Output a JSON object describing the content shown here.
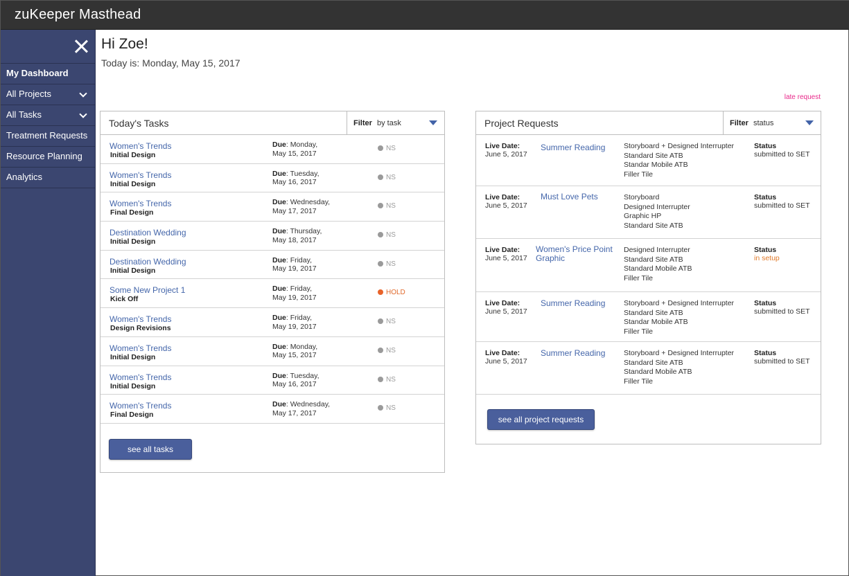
{
  "masthead": {
    "title": "zuKeeper Masthead"
  },
  "sidebar": {
    "close_icon": "close-icon",
    "items": [
      {
        "label": "My Dashboard",
        "active": true,
        "expandable": false
      },
      {
        "label": "All Projects",
        "active": false,
        "expandable": true
      },
      {
        "label": "All Tasks",
        "active": false,
        "expandable": true
      },
      {
        "label": "Treatment Requests",
        "active": false,
        "expandable": false
      },
      {
        "label": "Resource Planning",
        "active": false,
        "expandable": false
      },
      {
        "label": "Analytics",
        "active": false,
        "expandable": false
      }
    ]
  },
  "header": {
    "greeting": "Hi Zoe!",
    "today": "Today is: Monday, May 15, 2017",
    "legend_late": "late request"
  },
  "colors": {
    "masthead": "#333333",
    "sidebar": "#3b4670",
    "link": "#4466aa",
    "button": "#4a5f9c",
    "hold": "#e8632a",
    "late": "#e8298a",
    "in_setup": "#e07a2a"
  },
  "tasks": {
    "title": "Today's Tasks",
    "filter_label": "Filter",
    "filter_value": "by task",
    "due_label": "Due",
    "button_label": "see all tasks",
    "rows": [
      {
        "project": "Women's Trends",
        "task": "Initial Design",
        "due1": "Monday,",
        "due2": "May 15, 2017",
        "status": "NS"
      },
      {
        "project": "Women's Trends",
        "task": "Initial Design",
        "due1": "Tuesday,",
        "due2": "May 16, 2017",
        "status": "NS"
      },
      {
        "project": "Women's Trends",
        "task": "Final Design",
        "due1": "Wednesday,",
        "due2": "May 17, 2017",
        "status": "NS"
      },
      {
        "project": "Destination Wedding",
        "task": "Initial Design",
        "due1": "Thursday,",
        "due2": "May 18, 2017",
        "status": "NS"
      },
      {
        "project": "Destination Wedding",
        "task": "Initial Design",
        "due1": "Friday,",
        "due2": "May 19, 2017",
        "status": "NS"
      },
      {
        "project": "Some New Project 1",
        "task": "Kick Off",
        "due1": "Friday,",
        "due2": "May 19, 2017",
        "status": "HOLD"
      },
      {
        "project": "Women's Trends",
        "task": "Design Revisions",
        "due1": "Friday,",
        "due2": "May 19, 2017",
        "status": "NS"
      },
      {
        "project": "Women's Trends",
        "task": "Initial Design",
        "due1": "Monday,",
        "due2": "May 15, 2017",
        "status": "NS"
      },
      {
        "project": "Women's Trends",
        "task": "Initial Design",
        "due1": "Tuesday,",
        "due2": "May 16, 2017",
        "status": "NS"
      },
      {
        "project": "Women's Trends",
        "task": "Final Design",
        "due1": "Wednesday,",
        "due2": "May 17, 2017",
        "status": "NS"
      }
    ]
  },
  "requests": {
    "title": "Project Requests",
    "filter_label": "Filter",
    "filter_value": "status",
    "live_label": "Live Date:",
    "status_label": "Status",
    "button_label": "see all project requests",
    "rows": [
      {
        "live_date": "June 5, 2017",
        "name": "Summer Reading",
        "items": [
          "Storyboard + Designed Interrupter",
          "Standard Site ATB",
          "Standar Mobile ATB",
          "Filler Tile"
        ],
        "status": "submitted to SET"
      },
      {
        "live_date": "June 5, 2017",
        "name": "Must Love Pets",
        "items": [
          "Storyboard",
          "Designed Interrupter",
          "Graphic HP",
          "Standard Site ATB"
        ],
        "status": "submitted to SET"
      },
      {
        "live_date": "June 5, 2017",
        "name": "Women's Price Point Graphic",
        "items": [
          "Designed Interrupter",
          "Standard Site ATB",
          "Standard Mobile ATB",
          "Filler Tile"
        ],
        "status": "in setup"
      },
      {
        "live_date": "June 5, 2017",
        "name": "Summer Reading",
        "items": [
          "Storyboard + Designed Interrupter",
          "Standard Site ATB",
          "Standar Mobile ATB",
          "Filler Tile"
        ],
        "status": "submitted to SET"
      },
      {
        "live_date": "June 5, 2017",
        "name": "Summer Reading",
        "items": [
          "Storyboard + Designed Interrupter",
          "Standard Site ATB",
          "Standard Mobile ATB",
          "Filler Tile"
        ],
        "status": "submitted to SET"
      }
    ]
  }
}
